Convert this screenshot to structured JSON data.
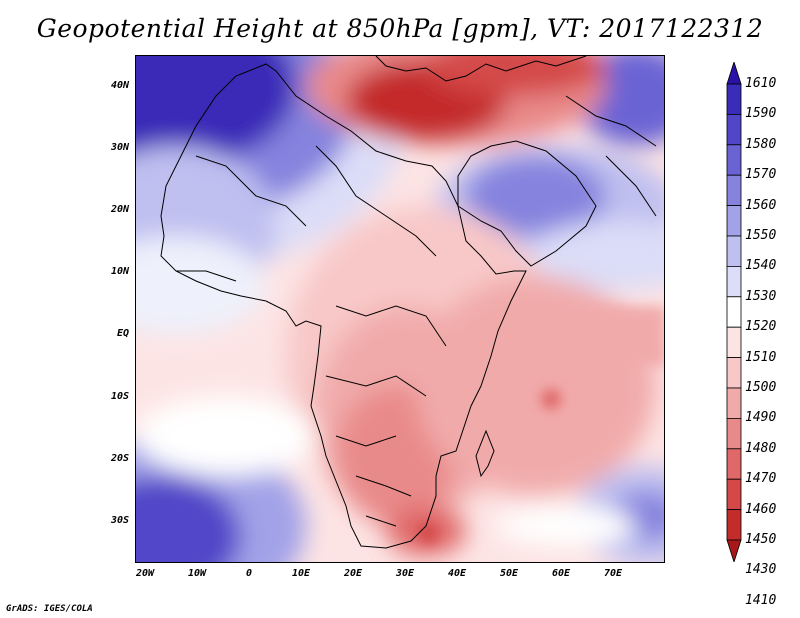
{
  "title": "Geopotential Height at 850hPa [gpm], VT: 2017122312",
  "credit": "GrADS: IGES/COLA",
  "latitude_labels": [
    "40N",
    "30N",
    "20N",
    "10N",
    "EQ",
    "10S",
    "20S",
    "30S"
  ],
  "longitude_labels": [
    "20W",
    "10W",
    "0",
    "10E",
    "20E",
    "30E",
    "40E",
    "50E",
    "60E",
    "70E"
  ],
  "colorbar": {
    "labels": [
      "1610",
      "1590",
      "1580",
      "1570",
      "1560",
      "1550",
      "1540",
      "1530",
      "1520",
      "1510",
      "1500",
      "1490",
      "1480",
      "1470",
      "1460",
      "1450",
      "1430",
      "1410"
    ],
    "colors": [
      "#2a12a8",
      "#3a2cb8",
      "#5146c8",
      "#6a63d4",
      "#8583de",
      "#a2a2e8",
      "#bfc0f0",
      "#dcddf8",
      "#ffffff",
      "#fde4e4",
      "#f8c8c8",
      "#f1aaaa",
      "#e98a8a",
      "#e06868",
      "#d44848",
      "#c42c2c",
      "#a81818"
    ]
  },
  "map_colors": {
    "low_deep": "#a81818",
    "low_mid": "#e06868",
    "low_light": "#f8c8c8",
    "neutral": "#ffffff",
    "high_light": "#dcddf8",
    "high_mid": "#6a63d4",
    "high_deep": "#2a12a8",
    "coast": "#000000"
  }
}
